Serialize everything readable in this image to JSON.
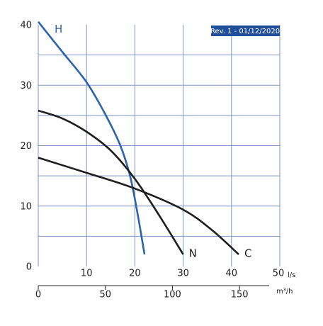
{
  "chart_data": {
    "type": "line",
    "annotation": "Rev. 1 - 01/12/2020",
    "x_label": "l/s",
    "x2_label": "m³/h",
    "xlim": [
      0,
      50
    ],
    "xticks": [
      10,
      20,
      30,
      40,
      50
    ],
    "ylim": [
      0,
      40
    ],
    "yticks": [
      0,
      10,
      20,
      30,
      40
    ],
    "ygrid": [
      5,
      10,
      15,
      20,
      25,
      30,
      35
    ],
    "x2lim": [
      0,
      180
    ],
    "x2ticks": [
      0,
      50,
      100,
      150
    ],
    "grid": true,
    "series": [
      {
        "name": "H",
        "color": "#2b63ad",
        "x": [
          0,
          5,
          10,
          14,
          17,
          19,
          20.5,
          22
        ],
        "values": [
          40.5,
          35.5,
          30.5,
          25,
          20,
          15,
          9,
          2
        ]
      },
      {
        "name": "N",
        "color": "#1e1e1e",
        "x": [
          0,
          5,
          10,
          15,
          20,
          25,
          30
        ],
        "values": [
          25.8,
          24.5,
          22.3,
          19.2,
          14.5,
          8.5,
          2
        ]
      },
      {
        "name": "C",
        "color": "#1e1e1e",
        "x": [
          0,
          10,
          20,
          30,
          36,
          41.5
        ],
        "values": [
          18,
          15.5,
          12.9,
          9.4,
          6,
          2
        ]
      }
    ]
  }
}
